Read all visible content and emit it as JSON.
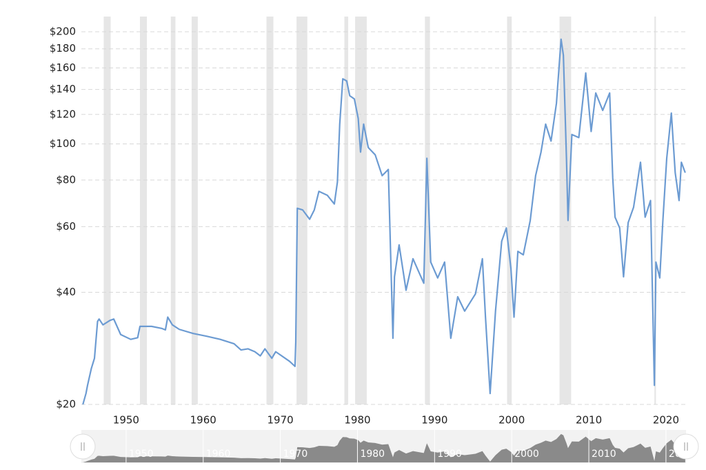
{
  "chart_data": {
    "type": "line",
    "x": [
      1944.4,
      1944.8,
      1945.0,
      1945.5,
      1945.9,
      1946.3,
      1946.5,
      1947.0,
      1947.9,
      1948.4,
      1949.3,
      1950.6,
      1951.5,
      1951.8,
      1953.3,
      1954.6,
      1955.1,
      1955.4,
      1956.0,
      1956.9,
      1958.7,
      1960.4,
      1962.2,
      1964.0,
      1964.9,
      1965.8,
      1966.7,
      1967.4,
      1968.0,
      1968.9,
      1969.4,
      1971.2,
      1971.9,
      1972.0,
      1972.2,
      1972.9,
      1973.8,
      1974.4,
      1975.0,
      1976.1,
      1977.0,
      1977.4,
      1977.7,
      1978.1,
      1978.6,
      1979.0,
      1979.6,
      1980.1,
      1980.4,
      1980.8,
      1981.4,
      1982.3,
      1983.2,
      1984.0,
      1984.6,
      1984.8,
      1985.4,
      1986.3,
      1987.2,
      1987.9,
      1988.6,
      1989.0,
      1989.5,
      1990.4,
      1991.3,
      1992.1,
      1993.0,
      1993.9,
      1995.3,
      1996.2,
      1996.6,
      1997.2,
      1997.9,
      1998.7,
      1999.3,
      1999.9,
      2000.3,
      2000.8,
      2001.5,
      2002.4,
      2003.1,
      2003.8,
      2004.4,
      2005.1,
      2005.8,
      2006.4,
      2006.7,
      2007.1,
      2007.3,
      2007.8,
      2008.7,
      2009.6,
      2010.3,
      2010.9,
      2011.8,
      2012.7,
      2013.1,
      2013.4,
      2014.0,
      2014.5,
      2015.1,
      2015.8,
      2016.7,
      2017.3,
      2018.0,
      2018.5,
      2018.7,
      2019.2,
      2019.6,
      2020.1,
      2020.7,
      2021.2,
      2021.7,
      2022.0,
      2022.5
    ],
    "series": [
      {
        "color": "#6c9bd2",
        "values": [
          20,
          21.4,
          22.5,
          25,
          26.6,
          33.4,
          33.9,
          32.7,
          33.6,
          33.9,
          30.8,
          29.9,
          30.2,
          32.4,
          32.4,
          32,
          31.7,
          34.3,
          32.7,
          31.8,
          31,
          30.5,
          29.9,
          29.1,
          28.0,
          28.2,
          27.7,
          27.0,
          28.2,
          26.6,
          27.7,
          26.1,
          25.3,
          29.4,
          67.2,
          66.5,
          62.8,
          66.5,
          74.6,
          72.8,
          69,
          79,
          113,
          149.5,
          147.6,
          134.7,
          132,
          117,
          95.1,
          113,
          97.8,
          93.5,
          82.2,
          85.4,
          30.1,
          44,
          53.6,
          40.5,
          49.2,
          45.6,
          42.3,
          91.5,
          48.2,
          43.7,
          48.2,
          30.1,
          38.9,
          35.6,
          39.6,
          49.2,
          34.3,
          21.4,
          35.6,
          54.8,
          59.5,
          46.3,
          34.3,
          51.5,
          50.4,
          62.3,
          82.2,
          95.1,
          113,
          101.8,
          128.5,
          191,
          173,
          91.5,
          62.3,
          106,
          104,
          155,
          108,
          137,
          123,
          137,
          81,
          63.6,
          59.5,
          44,
          61.5,
          67.6,
          89.3,
          63.6,
          70.5,
          22.5,
          48.2,
          43.7,
          62.3,
          91.5,
          121,
          83.7,
          70.5,
          89.3,
          83.7
        ]
      }
    ],
    "xlim": [
      1944.2,
      2022.6
    ],
    "xticks": [
      1950,
      1960,
      1970,
      1980,
      1990,
      2000,
      2010,
      2020
    ],
    "ylim": [
      20,
      200
    ],
    "log_scale": true,
    "grid": true,
    "yticks": [
      {
        "value": 20,
        "label": "$20"
      },
      {
        "value": 40,
        "label": "$40"
      },
      {
        "value": 60,
        "label": "$60"
      },
      {
        "value": 80,
        "label": "$80"
      },
      {
        "value": 100,
        "label": "$100"
      },
      {
        "value": 120,
        "label": "$120"
      },
      {
        "value": 140,
        "label": "$140"
      },
      {
        "value": 160,
        "label": "$160"
      },
      {
        "value": 180,
        "label": "$180"
      },
      {
        "value": 200,
        "label": "$200"
      }
    ],
    "recessions": [
      [
        1947.1,
        1948.0
      ],
      [
        1951.8,
        1952.7
      ],
      [
        1955.8,
        1956.4
      ],
      [
        1958.5,
        1959.3
      ],
      [
        1968.2,
        1969.1
      ],
      [
        1972.1,
        1973.5
      ],
      [
        1978.3,
        1978.8
      ],
      [
        1979.7,
        1981.2
      ],
      [
        1988.75,
        1989.4
      ],
      [
        1999.4,
        2000.0
      ],
      [
        2006.2,
        2007.7
      ],
      [
        2018.5,
        2018.7
      ]
    ]
  }
}
